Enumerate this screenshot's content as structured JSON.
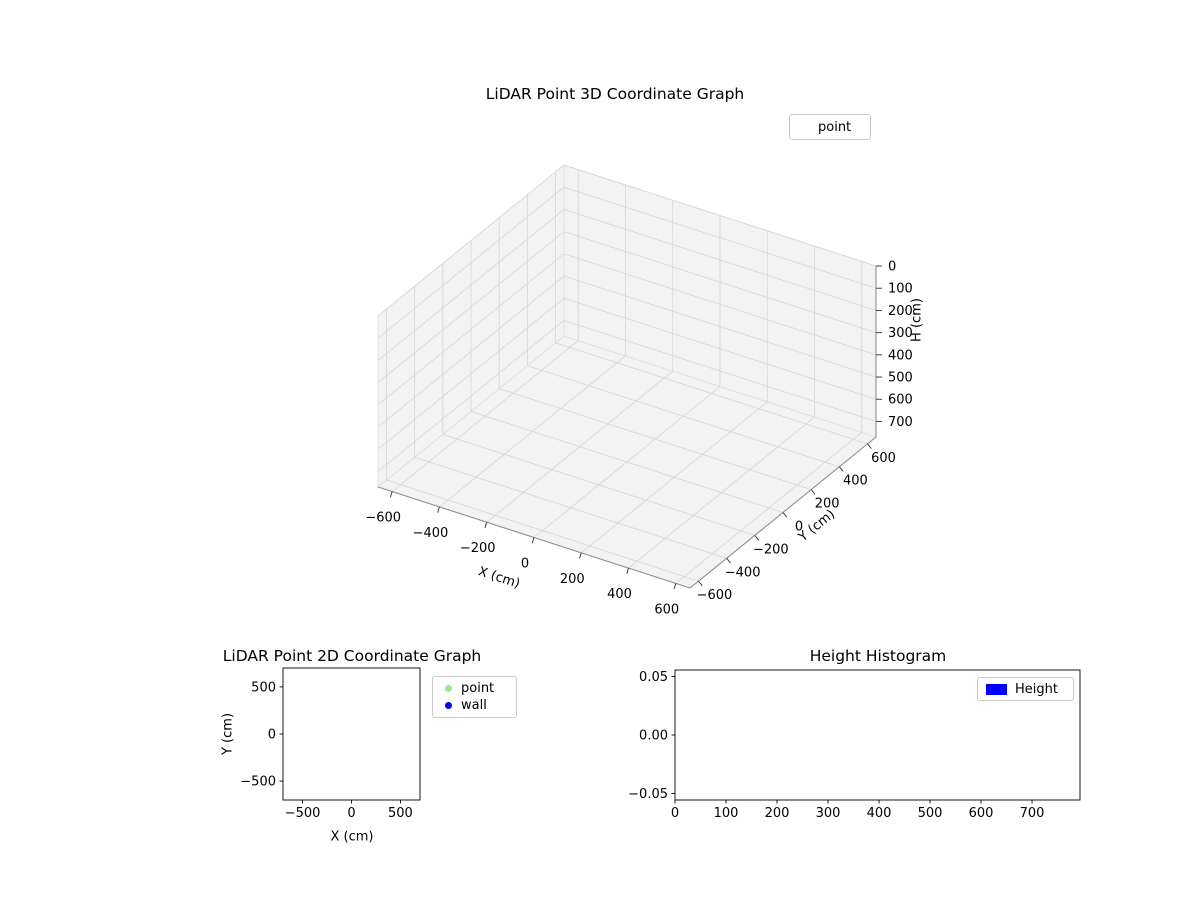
{
  "figure": {
    "background": "#ffffff"
  },
  "chart_data": [
    {
      "id": "lidar-3d",
      "type": "scatter3d",
      "title": "LiDAR Point 3D Coordinate Graph",
      "xlabel": "X (cm)",
      "ylabel": "Y (cm)",
      "zlabel": "H (cm)",
      "xlim": [
        -660,
        660
      ],
      "ylim": [
        -660,
        660
      ],
      "zlim": [
        0,
        770
      ],
      "z_axis_inverted": true,
      "xticks": [
        -600,
        -400,
        -200,
        0,
        200,
        400,
        600
      ],
      "xtick_labels": [
        "−600",
        "−400",
        "−200",
        "0",
        "200",
        "400",
        "600"
      ],
      "yticks": [
        -600,
        -400,
        -200,
        0,
        200,
        400,
        600
      ],
      "ytick_labels": [
        "−600",
        "−400",
        "−200",
        "0",
        "200",
        "400",
        "600"
      ],
      "zticks": [
        0,
        100,
        200,
        300,
        400,
        500,
        600,
        700
      ],
      "ztick_labels": [
        "0",
        "100",
        "200",
        "300",
        "400",
        "500",
        "600",
        "700"
      ],
      "grid": true,
      "pane_color": "#f3f3f3",
      "grid_color": "#d6d6d6",
      "legend": {
        "position": "upper right",
        "entries": [
          {
            "label": "point",
            "marker": "none"
          }
        ]
      },
      "series": [
        {
          "name": "point",
          "points": []
        }
      ]
    },
    {
      "id": "lidar-2d",
      "type": "scatter",
      "title": "LiDAR Point 2D Coordinate Graph",
      "xlabel": "X (cm)",
      "ylabel": "Y (cm)",
      "xlim": [
        -700,
        700
      ],
      "ylim": [
        -700,
        700
      ],
      "xticks": [
        -500,
        0,
        500
      ],
      "xtick_labels": [
        "−500",
        "0",
        "500"
      ],
      "yticks": [
        -500,
        0,
        500
      ],
      "ytick_labels": [
        "−500",
        "0",
        "500"
      ],
      "grid": false,
      "legend": {
        "position": "outside upper right",
        "entries": [
          {
            "label": "point",
            "marker": "circle",
            "color": "#90ee90"
          },
          {
            "label": "wall",
            "marker": "circle",
            "color": "#0000ff"
          }
        ]
      },
      "series": [
        {
          "name": "point",
          "points": []
        },
        {
          "name": "wall",
          "points": []
        }
      ]
    },
    {
      "id": "height-histogram",
      "type": "bar",
      "title": "Height Histogram",
      "xlabel": "",
      "ylabel": "",
      "xlim": [
        0,
        794
      ],
      "ylim": [
        -0.0555,
        0.0555
      ],
      "xticks": [
        0,
        100,
        200,
        300,
        400,
        500,
        600,
        700
      ],
      "xtick_labels": [
        "0",
        "100",
        "200",
        "300",
        "400",
        "500",
        "600",
        "700"
      ],
      "yticks": [
        -0.05,
        0,
        0.05
      ],
      "ytick_labels": [
        "−0.05",
        "0.00",
        "0.05"
      ],
      "grid": false,
      "legend": {
        "position": "upper right",
        "entries": [
          {
            "label": "Height",
            "marker": "rect",
            "color": "#0000ff"
          }
        ]
      },
      "values": []
    }
  ]
}
